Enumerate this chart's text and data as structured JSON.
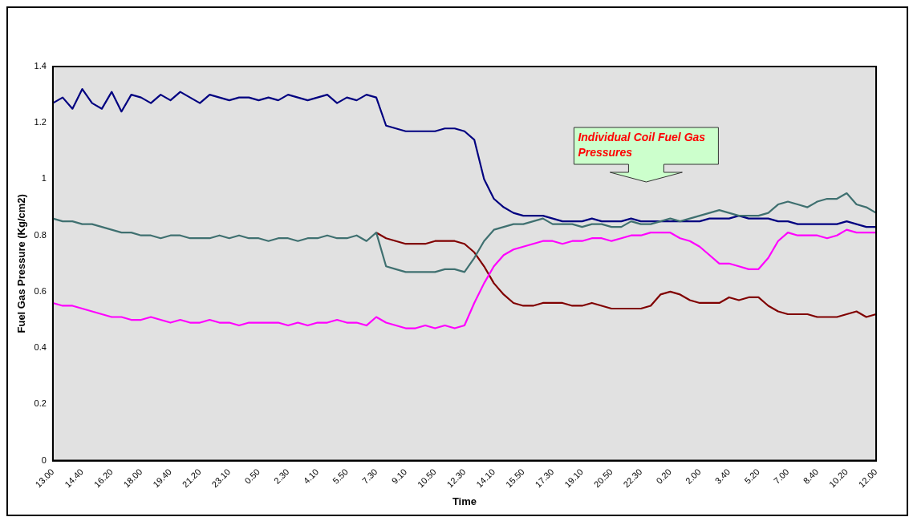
{
  "chart_data": {
    "type": "line",
    "xlabel": "Time",
    "ylabel": "Fuel Gas Pressure (Kg/cm2)",
    "categories": [
      "13.00",
      null,
      null,
      "14.40",
      null,
      null,
      "16.20",
      null,
      null,
      "18.00",
      null,
      null,
      "19.40",
      null,
      null,
      "21.20",
      null,
      null,
      "23.10",
      null,
      null,
      "0.50",
      null,
      null,
      "2.30",
      null,
      null,
      "4.10",
      null,
      null,
      "5.50",
      null,
      null,
      "7.30",
      null,
      null,
      "9.10",
      null,
      null,
      "10.50",
      null,
      null,
      "12.30",
      null,
      null,
      "14.10",
      null,
      null,
      "15.50",
      null,
      null,
      "17.30",
      null,
      null,
      "19.10",
      null,
      null,
      "20.50",
      null,
      null,
      "22.30",
      null,
      null,
      "0.20",
      null,
      null,
      "2.00",
      null,
      null,
      "3.40",
      null,
      null,
      "5.20",
      null,
      null,
      "7.00",
      null,
      null,
      "8.40",
      null,
      null,
      "10.20",
      null,
      null,
      "12.00"
    ],
    "series": [
      {
        "color": "#000080",
        "values": [
          1.27,
          1.29,
          1.25,
          1.32,
          1.27,
          1.25,
          1.31,
          1.24,
          1.3,
          1.29,
          1.27,
          1.3,
          1.28,
          1.31,
          1.29,
          1.27,
          1.3,
          1.29,
          1.28,
          1.29,
          1.29,
          1.28,
          1.29,
          1.28,
          1.3,
          1.29,
          1.28,
          1.29,
          1.3,
          1.27,
          1.29,
          1.28,
          1.3,
          1.29,
          1.19,
          1.18,
          1.17,
          1.17,
          1.17,
          1.17,
          1.18,
          1.18,
          1.17,
          1.14,
          1.0,
          0.93,
          0.9,
          0.88,
          0.87,
          0.87,
          0.87,
          0.86,
          0.85,
          0.85,
          0.85,
          0.86,
          0.85,
          0.85,
          0.85,
          0.86,
          0.85,
          0.85,
          0.85,
          0.85,
          0.85,
          0.85,
          0.85,
          0.86,
          0.86,
          0.86,
          0.87,
          0.86,
          0.86,
          0.86,
          0.85,
          0.85,
          0.84,
          0.84,
          0.84,
          0.84,
          0.84,
          0.85,
          0.84,
          0.83,
          0.83
        ]
      },
      {
        "color": "#800000",
        "values": [
          null,
          null,
          null,
          null,
          null,
          null,
          null,
          null,
          null,
          null,
          null,
          null,
          null,
          null,
          null,
          null,
          null,
          null,
          null,
          null,
          null,
          null,
          null,
          null,
          null,
          null,
          null,
          null,
          null,
          null,
          null,
          null,
          null,
          0.81,
          0.79,
          0.78,
          0.77,
          0.77,
          0.77,
          0.78,
          0.78,
          0.78,
          0.77,
          0.74,
          0.69,
          0.63,
          0.59,
          0.56,
          0.55,
          0.55,
          0.56,
          0.56,
          0.56,
          0.55,
          0.55,
          0.56,
          0.55,
          0.54,
          0.54,
          0.54,
          0.54,
          0.55,
          0.59,
          0.6,
          0.59,
          0.57,
          0.56,
          0.56,
          0.56,
          0.58,
          0.57,
          0.58,
          0.58,
          0.55,
          0.53,
          0.52,
          0.52,
          0.52,
          0.51,
          0.51,
          0.51,
          0.52,
          0.53,
          0.51,
          0.52
        ]
      },
      {
        "color": "#3f7070",
        "values": [
          0.86,
          0.85,
          0.85,
          0.84,
          0.84,
          0.83,
          0.82,
          0.81,
          0.81,
          0.8,
          0.8,
          0.79,
          0.8,
          0.8,
          0.79,
          0.79,
          0.79,
          0.8,
          0.79,
          0.8,
          0.79,
          0.79,
          0.78,
          0.79,
          0.79,
          0.78,
          0.79,
          0.79,
          0.8,
          0.79,
          0.79,
          0.8,
          0.78,
          0.81,
          0.69,
          0.68,
          0.67,
          0.67,
          0.67,
          0.67,
          0.68,
          0.68,
          0.67,
          0.72,
          0.78,
          0.82,
          0.83,
          0.84,
          0.84,
          0.85,
          0.86,
          0.84,
          0.84,
          0.84,
          0.83,
          0.84,
          0.84,
          0.83,
          0.83,
          0.85,
          0.84,
          0.84,
          0.85,
          0.86,
          0.85,
          0.86,
          0.87,
          0.88,
          0.89,
          0.88,
          0.87,
          0.87,
          0.87,
          0.88,
          0.91,
          0.92,
          0.91,
          0.9,
          0.92,
          0.93,
          0.93,
          0.95,
          0.91,
          0.9,
          0.88
        ]
      },
      {
        "color": "#ff00ff",
        "values": [
          0.56,
          0.55,
          0.55,
          0.54,
          0.53,
          0.52,
          0.51,
          0.51,
          0.5,
          0.5,
          0.51,
          0.5,
          0.49,
          0.5,
          0.49,
          0.49,
          0.5,
          0.49,
          0.49,
          0.48,
          0.49,
          0.49,
          0.49,
          0.49,
          0.48,
          0.49,
          0.48,
          0.49,
          0.49,
          0.5,
          0.49,
          0.49,
          0.48,
          0.51,
          0.49,
          0.48,
          0.47,
          0.47,
          0.48,
          0.47,
          0.48,
          0.47,
          0.48,
          0.56,
          0.63,
          0.69,
          0.73,
          0.75,
          0.76,
          0.77,
          0.78,
          0.78,
          0.77,
          0.78,
          0.78,
          0.79,
          0.79,
          0.78,
          0.79,
          0.8,
          0.8,
          0.81,
          0.81,
          0.81,
          0.79,
          0.78,
          0.76,
          0.73,
          0.7,
          0.7,
          0.69,
          0.68,
          0.68,
          0.72,
          0.78,
          0.81,
          0.8,
          0.8,
          0.8,
          0.79,
          0.8,
          0.82,
          0.81,
          0.81,
          0.81
        ]
      }
    ],
    "ylim": [
      0,
      1.4
    ],
    "yticks": [
      0,
      0.2,
      0.4,
      0.6,
      0.8,
      1,
      1.2,
      1.4
    ],
    "grid": false,
    "legend": false,
    "marker": "none",
    "line_style": "solid",
    "annotations": [
      "Individual Coil Fuel Gas Pressures"
    ]
  }
}
